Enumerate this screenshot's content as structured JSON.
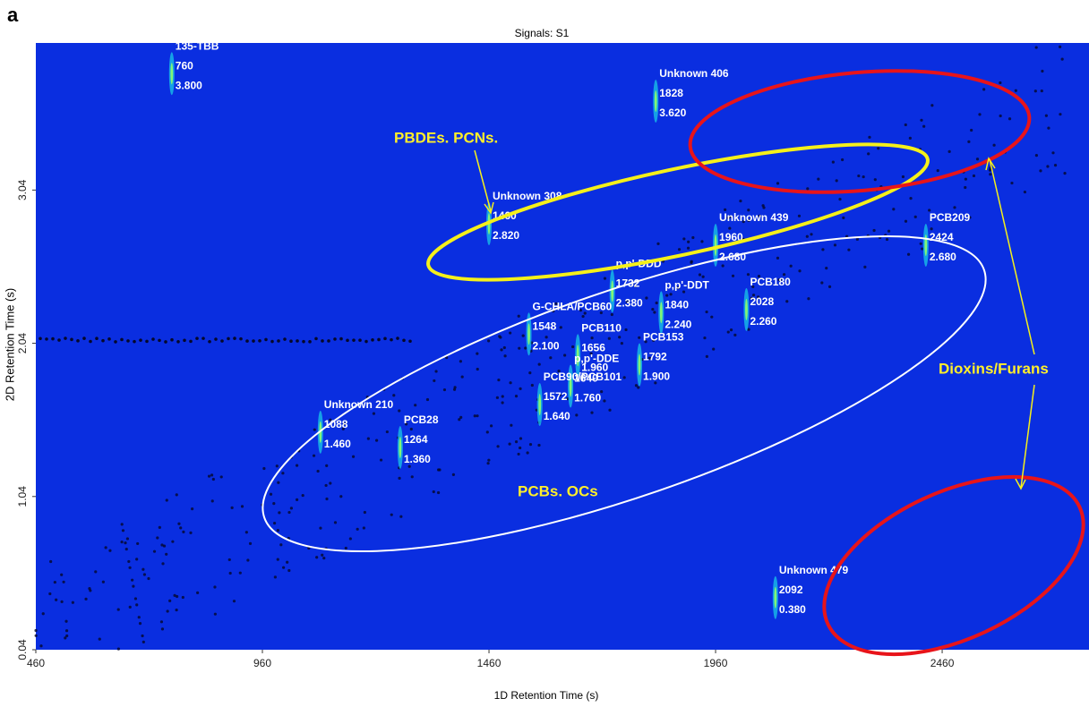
{
  "chart_data": {
    "type": "peak-map",
    "panel_label": "a",
    "title": "Signals: S1",
    "x_label": "1D Retention Time (s)",
    "y_label": "2D Retention Time (s)",
    "xlim": [
      460,
      2784
    ],
    "ylim": [
      0.04,
      4.0
    ],
    "xticks": [
      460,
      960,
      1460,
      1960,
      2460
    ],
    "yticks": [
      0.04,
      1.04,
      2.04,
      3.04
    ],
    "background": "#0a2ee0",
    "peaks": [
      {
        "name": "135-TBB",
        "x": 760,
        "y": 3.8,
        "y_label": "3.800"
      },
      {
        "name": "Unknown 406",
        "x": 1828,
        "y": 3.62,
        "y_label": "3.620"
      },
      {
        "name": "Unknown 308",
        "x": 1460,
        "y": 2.82,
        "y_label": "2.820"
      },
      {
        "name": "Unknown 439",
        "x": 1960,
        "y": 2.68,
        "y_label": "2.680"
      },
      {
        "name": "PCB209",
        "x": 2424,
        "y": 2.68,
        "y_label": "2.680"
      },
      {
        "name": "p,p'-DDD",
        "x": 1732,
        "y": 2.38,
        "y_label": "2.380"
      },
      {
        "name": "p,p'-DDT",
        "x": 1840,
        "y": 2.24,
        "y_label": "2.240"
      },
      {
        "name": "PCB180",
        "x": 2028,
        "y": 2.26,
        "y_label": "2.260"
      },
      {
        "name": "PCB110",
        "x": 1656,
        "y": 1.96,
        "y_label": "1.960"
      },
      {
        "name": "G-CHLA/PCB60",
        "x": 1548,
        "y": 2.1,
        "y_label": "2.100"
      },
      {
        "name": "p,p'-DDE",
        "x": 1640,
        "y": 1.76,
        "y_label": "1.760"
      },
      {
        "name": "PCB153",
        "x": 1792,
        "y": 1.9,
        "y_label": "1.900"
      },
      {
        "name": "PCB90/PCB101",
        "x": 1572,
        "y": 1.64,
        "y_label": "1.640"
      },
      {
        "name": "Unknown 210",
        "x": 1088,
        "y": 1.46,
        "y_label": "1.460"
      },
      {
        "name": "PCB28",
        "x": 1264,
        "y": 1.36,
        "y_label": "1.360"
      },
      {
        "name": "Unknown 479",
        "x": 2092,
        "y": 0.38,
        "y_label": "0.380"
      }
    ],
    "annotations": [
      "PBDEs. PCNs.",
      "PCBs. OCs",
      "Dioxins/Furans"
    ]
  }
}
